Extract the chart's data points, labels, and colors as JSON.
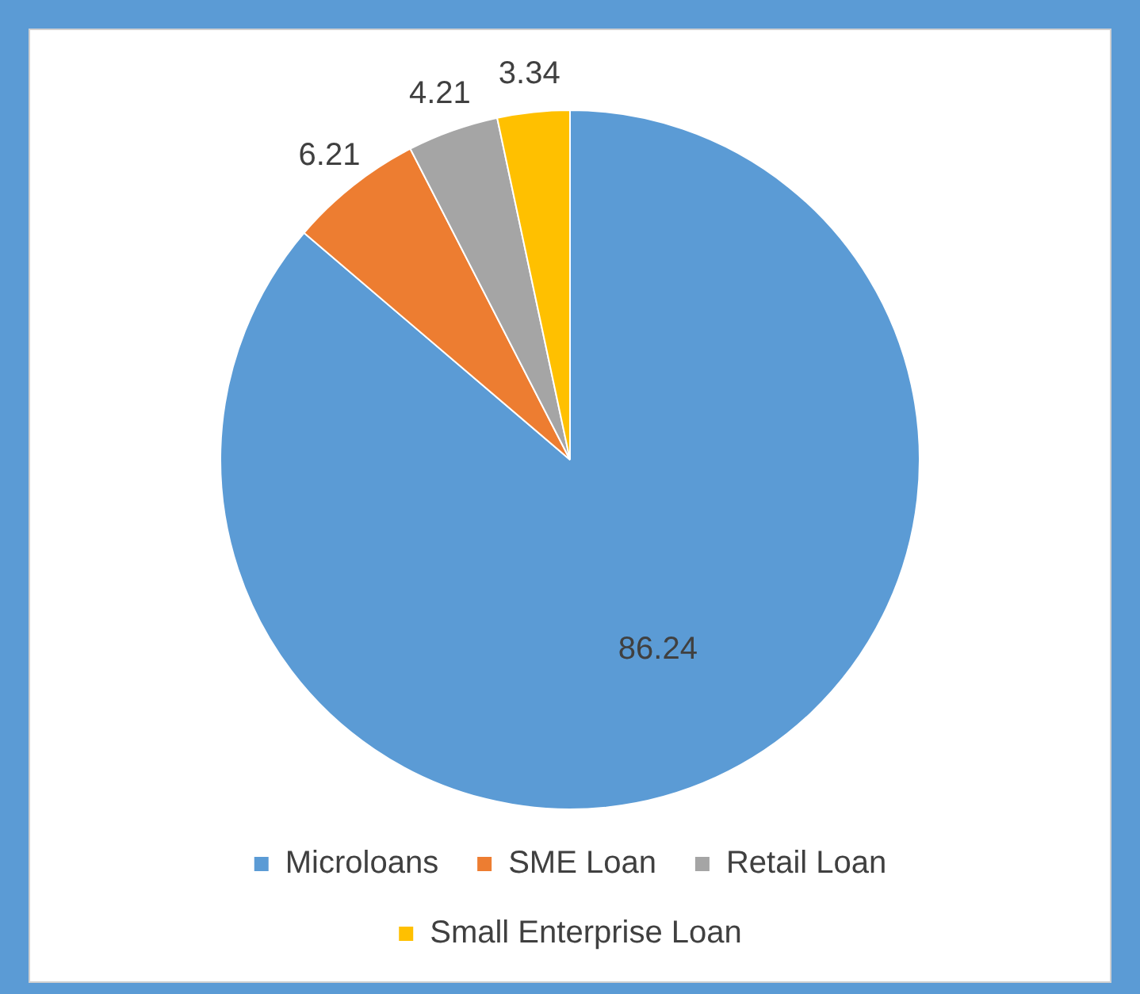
{
  "chart_data": {
    "type": "pie",
    "categories": [
      "Microloans",
      "SME Loan",
      "Retail Loan",
      "Small Enterprise Loan"
    ],
    "values": [
      86.24,
      6.21,
      4.21,
      3.34
    ],
    "colors": [
      "#5b9bd5",
      "#ed7d31",
      "#a5a5a5",
      "#ffc000"
    ],
    "data_labels": true,
    "legend": "bottom"
  }
}
